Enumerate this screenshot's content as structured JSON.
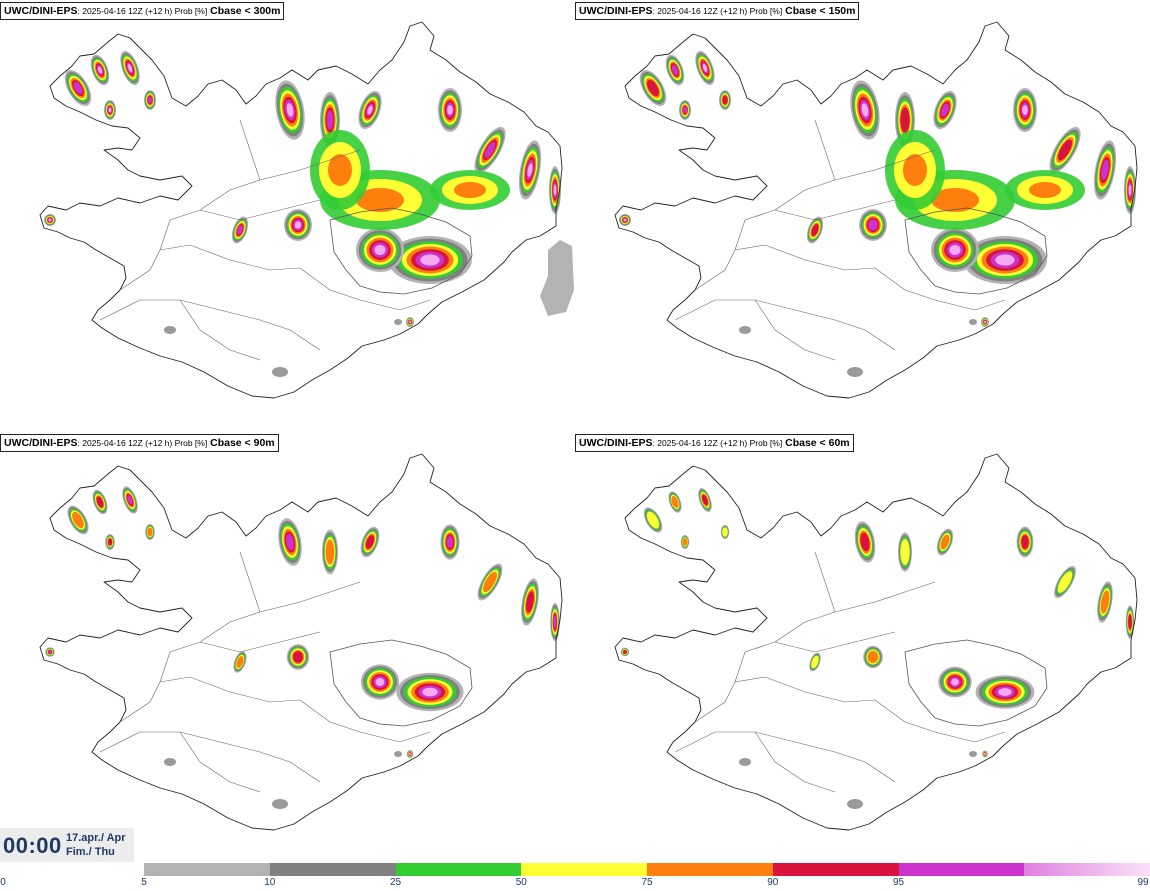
{
  "panels": [
    {
      "model": "UWC/DINI-EPS",
      "meta": ": 2025-04-16 12Z (+12 h) Prob [%]",
      "threshold": "Cbase < 300m",
      "level": 4
    },
    {
      "model": "UWC/DINI-EPS",
      "meta": ": 2025-04-16 12Z (+12 h) Prob [%]",
      "threshold": "Cbase < 150m",
      "level": 3
    },
    {
      "model": "UWC/DINI-EPS",
      "meta": ": 2025-04-16 12Z (+12 h) Prob [%]",
      "threshold": "Cbase < 90m",
      "level": 2
    },
    {
      "model": "UWC/DINI-EPS",
      "meta": ": 2025-04-16 12Z (+12 h) Prob [%]",
      "threshold": "Cbase < 60m",
      "level": 1
    }
  ],
  "time": {
    "clock": "00:00",
    "date_line": "17.apr./ Apr",
    "day_line": "Fim./ Thu"
  },
  "colorbar": {
    "labels": [
      "0",
      "5",
      "10",
      "25",
      "50",
      "75",
      "90",
      "95",
      "99"
    ],
    "colors": [
      "#b3b3b3",
      "#808080",
      "#33cc33",
      "#ffff33",
      "#ff7f0e",
      "#d7133e",
      "#cc33cc",
      "#f6a8f0"
    ]
  }
}
